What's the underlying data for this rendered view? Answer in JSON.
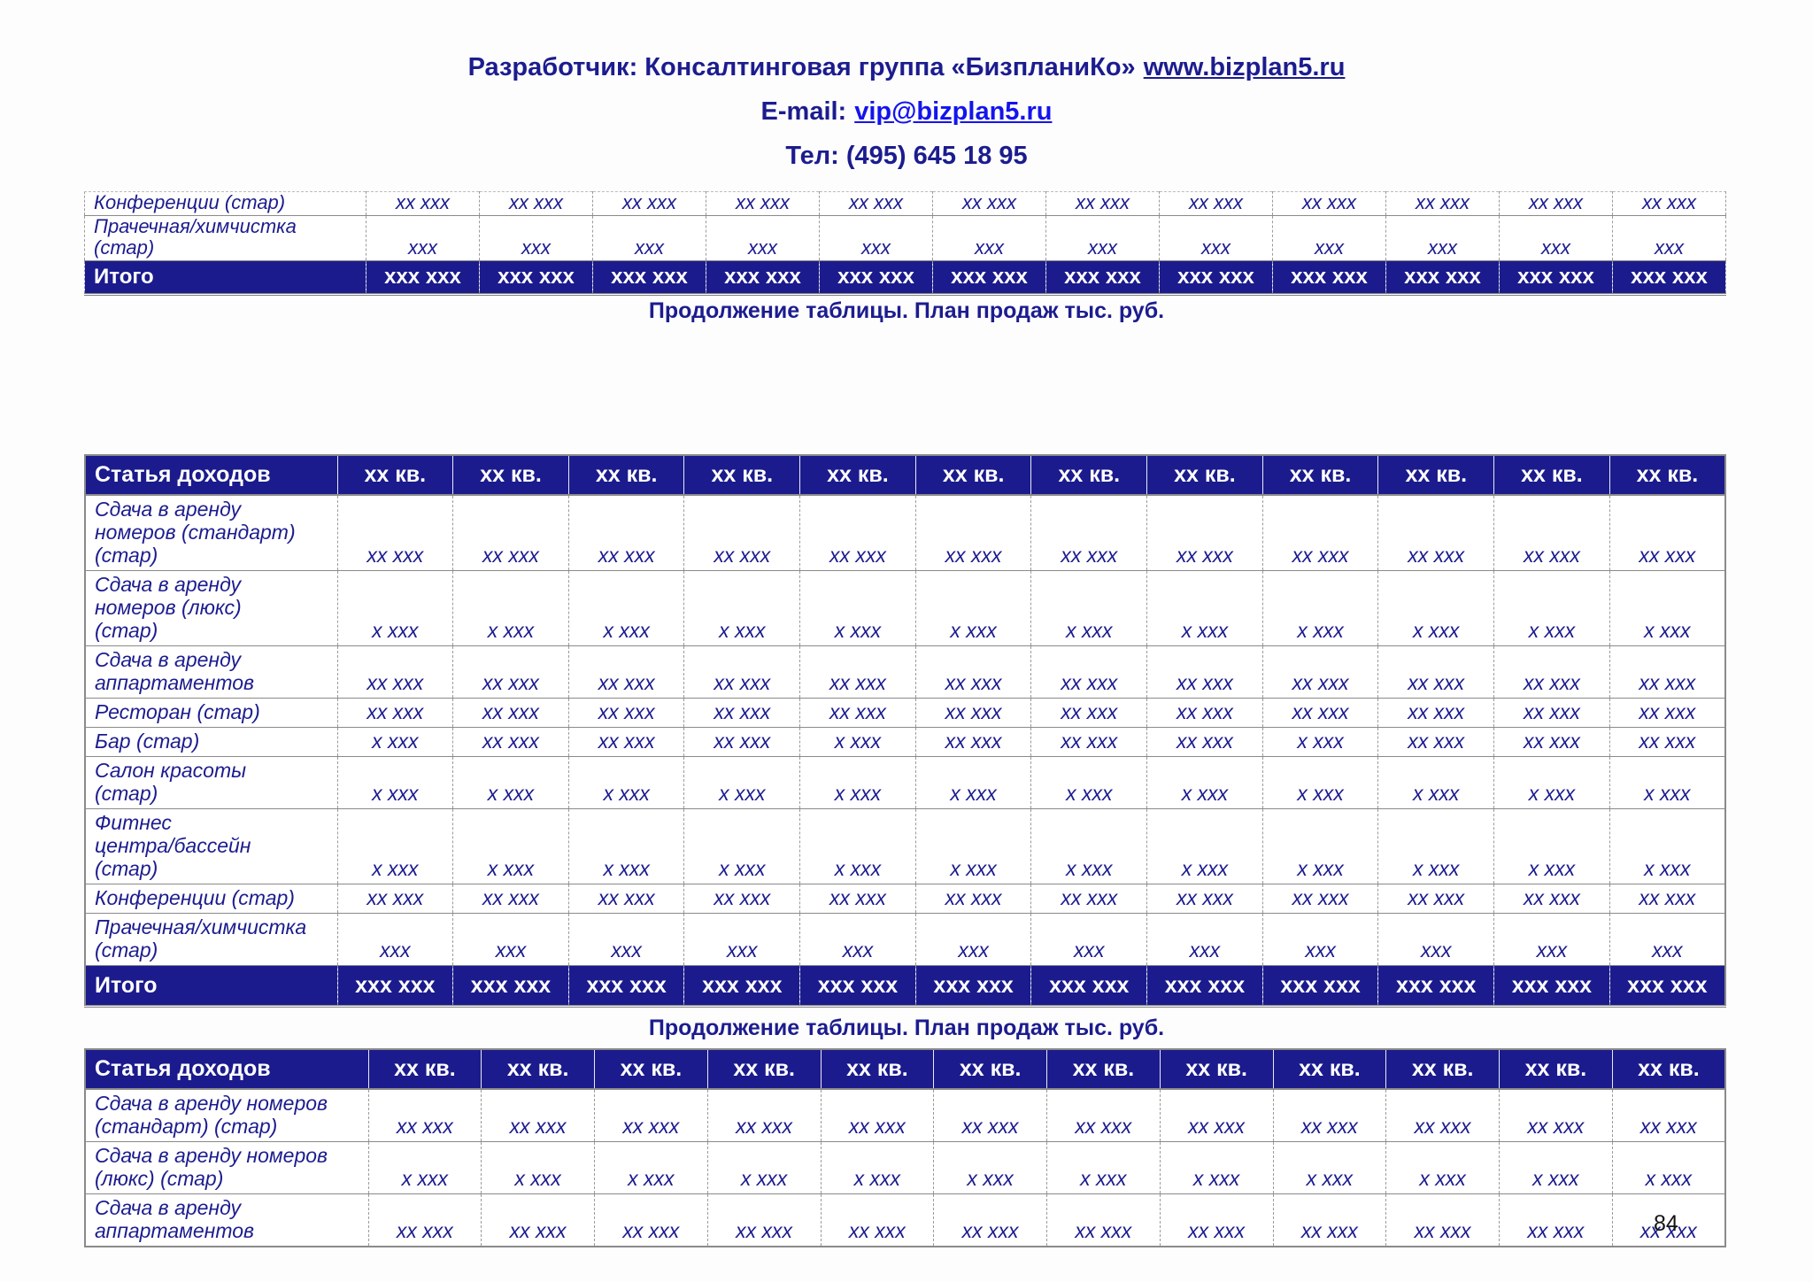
{
  "header": {
    "developer_prefix": "Разработчик: Консалтинговая группа «БизпланиКо»",
    "website": "www.bizplan5.ru",
    "email_label": "E-mail:",
    "email": "vip@bizplan5.ru",
    "phone": "Тел: (495) 645 18 95"
  },
  "captions": {
    "continuation": "Продолжение таблицы. План продаж тыс. руб."
  },
  "colors": {
    "navy_text": "#1c1c8f",
    "header_row_bg": "#1b1b8d",
    "header_row_text": "#ffffff",
    "email_link_blue": "#1414ee",
    "border_gray": "#8a8a8a"
  },
  "page_number": "84",
  "tables": {
    "top_partial": {
      "rows": [
        {
          "label": "Конференции (стар)",
          "values": [
            "хх ххх",
            "хх ххх",
            "хх ххх",
            "хх ххх",
            "хх ххх",
            "хх ххх",
            "хх ххх",
            "хх ххх",
            "хх ххх",
            "хх ххх",
            "хх ххх",
            "хх ххх"
          ]
        },
        {
          "label": "Прачечная/химчистка\n(стар)",
          "values": [
            "ххх",
            "ххх",
            "ххх",
            "ххх",
            "ххх",
            "ххх",
            "ххх",
            "ххх",
            "ххх",
            "ххх",
            "ххх",
            "ххх"
          ]
        }
      ],
      "total": {
        "label": "Итого",
        "values": [
          "ххх ххх",
          "ххх ххх",
          "ххх ххх",
          "ххх ххх",
          "ххх ххх",
          "ххх ххх",
          "ххх ххх",
          "ххх ххх",
          "ххх ххх",
          "ххх ххх",
          "ххх ххх",
          "ххх ххх"
        ]
      }
    },
    "main": {
      "header": {
        "label": "Статья доходов",
        "columns": [
          "хх кв.",
          "хх кв.",
          "хх кв.",
          "хх кв.",
          "хх кв.",
          "хх кв.",
          "хх кв.",
          "хх кв.",
          "хх кв.",
          "хх кв.",
          "хх кв.",
          "хх кв."
        ]
      },
      "rows": [
        {
          "label": "Сдача в аренду\nномеров (стандарт)\n(стар)",
          "values": [
            "хх ххх",
            "хх ххх",
            "хх ххх",
            "хх ххх",
            "хх ххх",
            "хх ххх",
            "хх ххх",
            "хх ххх",
            "хх ххх",
            "хх ххх",
            "хх ххх",
            "хх ххх"
          ]
        },
        {
          "label": "Сдача в аренду\nномеров (люкс)\n(стар)",
          "values": [
            "х ххх",
            "х ххх",
            "х ххх",
            "х ххх",
            "х ххх",
            "х ххх",
            "х ххх",
            "х ххх",
            "х ххх",
            "х ххх",
            "х ххх",
            "х ххх"
          ]
        },
        {
          "label": "Сдача в аренду\nаппартаментов",
          "values": [
            "хх ххх",
            "хх ххх",
            "хх ххх",
            "хх ххх",
            "хх ххх",
            "хх ххх",
            "хх ххх",
            "хх ххх",
            "хх ххх",
            "хх ххх",
            "хх ххх",
            "хх ххх"
          ]
        },
        {
          "label": "Ресторан (стар)",
          "values": [
            "хх ххх",
            "хх ххх",
            "хх ххх",
            "хх ххх",
            "хх ххх",
            "хх ххх",
            "хх ххх",
            "хх ххх",
            "хх ххх",
            "хх ххх",
            "хх ххх",
            "хх ххх"
          ]
        },
        {
          "label": "Бар (стар)",
          "values": [
            "х ххх",
            "хх ххх",
            "хх ххх",
            "хх ххх",
            "х ххх",
            "хх ххх",
            "хх ххх",
            "хх ххх",
            "х ххх",
            "хх ххх",
            "хх ххх",
            "хх ххх"
          ]
        },
        {
          "label": "Салон красоты\n(стар)",
          "values": [
            "х ххх",
            "х ххх",
            "х ххх",
            "х ххх",
            "х ххх",
            "х ххх",
            "х ххх",
            "х ххх",
            "х ххх",
            "х ххх",
            "х ххх",
            "х ххх"
          ]
        },
        {
          "label": "Фитнес\nцентра/бассейн\n(стар)",
          "values": [
            "х ххх",
            "х ххх",
            "х ххх",
            "х ххх",
            "х ххх",
            "х ххх",
            "х ххх",
            "х ххх",
            "х ххх",
            "х ххх",
            "х ххх",
            "х ххх"
          ]
        },
        {
          "label": "Конференции (стар)",
          "values": [
            "хх ххх",
            "хх ххх",
            "хх ххх",
            "хх ххх",
            "хх ххх",
            "хх ххх",
            "хх ххх",
            "хх ххх",
            "хх ххх",
            "хх ххх",
            "хх ххх",
            "хх ххх"
          ]
        },
        {
          "label": "Прачечная/химчистка\n(стар)",
          "values": [
            "ххх",
            "ххх",
            "ххх",
            "ххх",
            "ххх",
            "ххх",
            "ххх",
            "ххх",
            "ххх",
            "ххх",
            "ххх",
            "ххх"
          ]
        }
      ],
      "total": {
        "label": "Итого",
        "values": [
          "ххх ххх",
          "ххх ххх",
          "ххх ххх",
          "ххх ххх",
          "ххх ххх",
          "ххх ххх",
          "ххх ххх",
          "ххх ххх",
          "ххх ххх",
          "ххх ххх",
          "ххх ххх",
          "ххх ххх"
        ]
      }
    },
    "extra": {
      "header": {
        "label": "Статья доходов",
        "columns": [
          "хх кв.",
          "хх кв.",
          "хх кв.",
          "хх кв.",
          "хх кв.",
          "хх кв.",
          "хх кв.",
          "хх кв.",
          "хх кв.",
          "хх кв.",
          "хх кв.",
          "хх кв."
        ]
      },
      "rows": [
        {
          "label": "Сдача в аренду номеров\n(стандарт) (стар)",
          "values": [
            "хх ххх",
            "хх ххх",
            "хх ххх",
            "хх ххх",
            "хх ххх",
            "хх ххх",
            "хх ххх",
            "хх ххх",
            "хх ххх",
            "хх ххх",
            "хх ххх",
            "хх ххх"
          ]
        },
        {
          "label": "Сдача в аренду номеров\n(люкс) (стар)",
          "values": [
            "х ххх",
            "х ххх",
            "х ххх",
            "х ххх",
            "х ххх",
            "х ххх",
            "х ххх",
            "х ххх",
            "х ххх",
            "х ххх",
            "х ххх",
            "х ххх"
          ]
        },
        {
          "label": "Сдача в аренду\nаппартаментов",
          "values": [
            "хх ххх",
            "хх ххх",
            "хх ххх",
            "хх ххх",
            "хх ххх",
            "хх ххх",
            "хх ххх",
            "хх ххх",
            "хх ххх",
            "хх ххх",
            "хх ххх",
            "хх ххх"
          ]
        }
      ]
    }
  }
}
